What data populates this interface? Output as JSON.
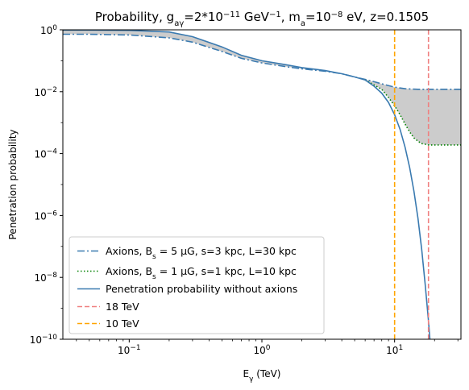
{
  "chart_data": {
    "type": "line",
    "title": "Probability, g_{aγ}=2*10^{-11} GeV^{-1}, m_a=10^{-8} eV, z=0.1505",
    "xlabel": "E_γ (TeV)",
    "ylabel": "Penetration probability",
    "xscale": "log",
    "yscale": "log",
    "xlim": [
      0.03162,
      31.62
    ],
    "ylim": [
      1e-10,
      1
    ],
    "x_ticks": [
      {
        "value": 0.1,
        "label": "10^-1"
      },
      {
        "value": 1,
        "label": "10^0"
      },
      {
        "value": 10,
        "label": "10^1"
      }
    ],
    "y_ticks": [
      {
        "value": 1,
        "label": "10^0"
      },
      {
        "value": 0.01,
        "label": "10^-2"
      },
      {
        "value": 0.0001,
        "label": "10^-4"
      },
      {
        "value": 1e-06,
        "label": "10^-6"
      },
      {
        "value": 1e-08,
        "label": "10^-8"
      },
      {
        "value": 1e-10,
        "label": "10^-10"
      }
    ],
    "legend_position": "lower-left",
    "series": [
      {
        "name": "Axions, B_s = 5 μG, s=3 kpc, L=30 kpc",
        "color": "#3a7ab0",
        "style": "dashdot",
        "x": [
          0.0316,
          0.05,
          0.1,
          0.2,
          0.3,
          0.5,
          0.7,
          1.0,
          1.5,
          2.0,
          3.0,
          4.0,
          5.0,
          6.0,
          7.0,
          8.0,
          10.0,
          12.0,
          15.0,
          20.0,
          25.0,
          31.6
        ],
        "y": [
          0.72,
          0.72,
          0.68,
          0.55,
          0.4,
          0.2,
          0.12,
          0.085,
          0.065,
          0.055,
          0.046,
          0.038,
          0.03,
          0.025,
          0.021,
          0.018,
          0.014,
          0.0125,
          0.012,
          0.012,
          0.012,
          0.012
        ]
      },
      {
        "name": "Axions, B_s = 1 μG, s=1 kpc, L=10 kpc",
        "color": "#008000",
        "style": "dotted",
        "x": [
          6.0,
          8.0,
          9.0,
          10.0,
          11.0,
          12.0,
          13.0,
          14.0,
          15.0,
          16.0,
          17.0,
          18.0,
          20.0,
          22.0,
          25.0,
          31.6
        ],
        "y": [
          0.024,
          0.012,
          0.0065,
          0.0035,
          0.0018,
          0.0009,
          0.0005,
          0.00032,
          0.00025,
          0.00021,
          0.0002,
          0.00019,
          0.00019,
          0.00019,
          0.00019,
          0.00019
        ]
      },
      {
        "name": "Penetration probability without axions",
        "color": "#3a7ab0",
        "style": "solid",
        "x": [
          0.0316,
          0.05,
          0.1,
          0.2,
          0.3,
          0.5,
          0.7,
          1.0,
          1.5,
          2.0,
          3.0,
          4.0,
          5.0,
          6.0,
          7.0,
          8.0,
          9.0,
          10.0,
          11.0,
          12.0,
          13.0,
          14.0,
          15.0,
          16.0,
          17.0,
          18.0,
          19.0
        ],
        "y": [
          0.98,
          0.98,
          0.96,
          0.85,
          0.6,
          0.28,
          0.15,
          0.1,
          0.075,
          0.06,
          0.048,
          0.038,
          0.03,
          0.024,
          0.015,
          0.009,
          0.0045,
          0.0018,
          0.0006,
          0.00016,
          3.5e-05,
          6e-06,
          8e-07,
          8e-08,
          6e-09,
          4e-10,
          2e-11
        ]
      },
      {
        "name": "18 TeV",
        "color": "#f08080",
        "style": "dashed",
        "vline": 18
      },
      {
        "name": "10 TeV",
        "color": "#ffa500",
        "style": "dashed",
        "vline": 10
      }
    ],
    "shaded_band": {
      "color": "#cccccc",
      "between": [
        "Axions, B_s = 5 μG, s=3 kpc, L=30 kpc",
        "Axions, B_s = 1 μG, s=1 kpc, L=10 kpc"
      ]
    }
  }
}
